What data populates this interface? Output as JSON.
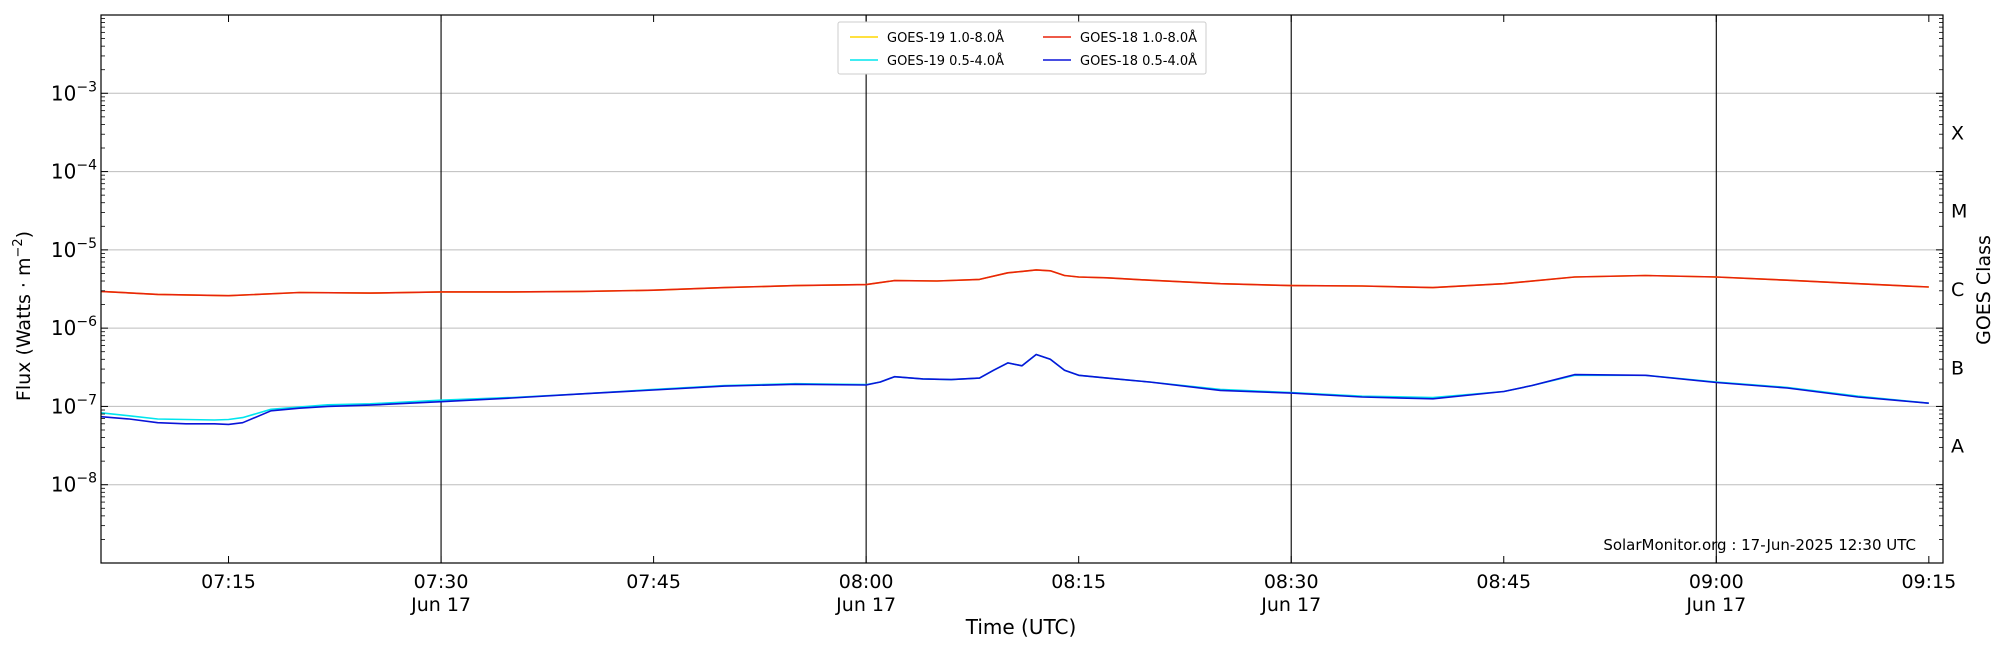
{
  "chart_data": {
    "type": "line",
    "xlabel": "Time (UTC)",
    "ylabel_main": "Flux (Watts · m",
    "ylabel_sup": "−2",
    "ylabel_close": ")",
    "right_label": "GOES Class",
    "watermark": "SolarMonitor.org : 17-Jun-2025 12:30 UTC",
    "scale": "log",
    "grid": "horizontal",
    "legend_position": "top-center",
    "xlim": [
      "07:06",
      "09:16"
    ],
    "ylim": [
      1e-09,
      0.01
    ],
    "x_ticks": [
      {
        "t": "07:15",
        "label": "07:15",
        "sub": ""
      },
      {
        "t": "07:30",
        "label": "07:30",
        "sub": "Jun 17"
      },
      {
        "t": "07:45",
        "label": "07:45",
        "sub": ""
      },
      {
        "t": "08:00",
        "label": "08:00",
        "sub": "Jun 17"
      },
      {
        "t": "08:15",
        "label": "08:15",
        "sub": ""
      },
      {
        "t": "08:30",
        "label": "08:30",
        "sub": "Jun 17"
      },
      {
        "t": "08:45",
        "label": "08:45",
        "sub": ""
      },
      {
        "t": "09:00",
        "label": "09:00",
        "sub": "Jun 17"
      },
      {
        "t": "09:15",
        "label": "09:15",
        "sub": ""
      }
    ],
    "day_lines": [
      "07:30",
      "08:00",
      "08:30",
      "09:00"
    ],
    "y_ticks": [
      {
        "exp": -8,
        "label": "10",
        "sup": "−8"
      },
      {
        "exp": -7,
        "label": "10",
        "sup": "−7"
      },
      {
        "exp": -6,
        "label": "10",
        "sup": "−6"
      },
      {
        "exp": -5,
        "label": "10",
        "sup": "−5"
      },
      {
        "exp": -4,
        "label": "10",
        "sup": "−4"
      },
      {
        "exp": -3,
        "label": "10",
        "sup": "−3"
      }
    ],
    "goes_classes": [
      {
        "label": "A",
        "exp": -7.5
      },
      {
        "label": "B",
        "exp": -6.5
      },
      {
        "label": "C",
        "exp": -5.5
      },
      {
        "label": "M",
        "exp": -4.5
      },
      {
        "label": "X",
        "exp": -3.5
      }
    ],
    "legend": [
      {
        "name": "GOES-19 1.0-8.0Å",
        "color": "#ffd700"
      },
      {
        "name": "GOES-19 0.5-4.0Å",
        "color": "#00e5ee"
      },
      {
        "name": "GOES-18 1.0-8.0Å",
        "color": "#e8230c"
      },
      {
        "name": "GOES-18 0.5-4.0Å",
        "color": "#0a14d8"
      }
    ],
    "series": [
      {
        "name": "GOES-19 1.0-8.0Å",
        "color": "#ffd700",
        "x": [
          "07:06",
          "07:10",
          "07:15",
          "07:20",
          "07:25",
          "07:30",
          "07:35",
          "07:40",
          "07:45",
          "07:50",
          "07:55",
          "08:00",
          "08:02",
          "08:05",
          "08:08",
          "08:10",
          "08:11",
          "08:12",
          "08:13",
          "08:14",
          "08:15",
          "08:17",
          "08:20",
          "08:25",
          "08:30",
          "08:35",
          "08:40",
          "08:45",
          "08:50",
          "08:55",
          "09:00",
          "09:05",
          "09:10",
          "09:15"
        ],
        "y": [
          2.95e-06,
          2.7e-06,
          2.6e-06,
          2.85e-06,
          2.8e-06,
          2.9e-06,
          2.9e-06,
          2.95e-06,
          3.05e-06,
          3.3e-06,
          3.5e-06,
          3.6e-06,
          4.05e-06,
          4e-06,
          4.2e-06,
          5.1e-06,
          5.3e-06,
          5.55e-06,
          5.4e-06,
          4.7e-06,
          4.5e-06,
          4.4e-06,
          4.1e-06,
          3.7e-06,
          3.5e-06,
          3.45e-06,
          3.3e-06,
          3.7e-06,
          4.5e-06,
          4.7e-06,
          4.5e-06,
          4.1e-06,
          3.7e-06,
          3.35e-06
        ]
      },
      {
        "name": "GOES-18 1.0-8.0Å",
        "color": "#e8230c",
        "x": [
          "07:06",
          "07:10",
          "07:15",
          "07:20",
          "07:25",
          "07:30",
          "07:35",
          "07:40",
          "07:45",
          "07:50",
          "07:55",
          "08:00",
          "08:02",
          "08:05",
          "08:08",
          "08:10",
          "08:11",
          "08:12",
          "08:13",
          "08:14",
          "08:15",
          "08:17",
          "08:20",
          "08:25",
          "08:30",
          "08:35",
          "08:40",
          "08:45",
          "08:50",
          "08:55",
          "09:00",
          "09:05",
          "09:10",
          "09:15"
        ],
        "y": [
          2.95e-06,
          2.7e-06,
          2.6e-06,
          2.85e-06,
          2.8e-06,
          2.9e-06,
          2.9e-06,
          2.95e-06,
          3.05e-06,
          3.3e-06,
          3.5e-06,
          3.6e-06,
          4.05e-06,
          4e-06,
          4.2e-06,
          5.1e-06,
          5.3e-06,
          5.55e-06,
          5.4e-06,
          4.7e-06,
          4.5e-06,
          4.4e-06,
          4.1e-06,
          3.7e-06,
          3.5e-06,
          3.45e-06,
          3.3e-06,
          3.7e-06,
          4.5e-06,
          4.7e-06,
          4.5e-06,
          4.1e-06,
          3.7e-06,
          3.35e-06
        ]
      },
      {
        "name": "GOES-19 0.5-4.0Å",
        "color": "#00e5ee",
        "x": [
          "07:06",
          "07:08",
          "07:10",
          "07:12",
          "07:14",
          "07:15",
          "07:16",
          "07:18",
          "07:20",
          "07:22",
          "07:25",
          "07:30",
          "07:35",
          "07:40",
          "07:45",
          "07:50",
          "07:55",
          "08:00",
          "08:01",
          "08:02",
          "08:04",
          "08:06",
          "08:08",
          "08:09",
          "08:10",
          "08:11",
          "08:12",
          "08:13",
          "08:14",
          "08:15",
          "08:17",
          "08:20",
          "08:25",
          "08:30",
          "08:35",
          "08:40",
          "08:45",
          "08:47",
          "08:50",
          "08:55",
          "09:00",
          "09:05",
          "09:10",
          "09:15"
        ],
        "y": [
          8.3e-08,
          7.6e-08,
          6.9e-08,
          6.8e-08,
          6.7e-08,
          6.8e-08,
          7.2e-08,
          9.2e-08,
          9.8e-08,
          1.05e-07,
          1.08e-07,
          1.2e-07,
          1.3e-07,
          1.45e-07,
          1.65e-07,
          1.85e-07,
          1.95e-07,
          1.9e-07,
          2.05e-07,
          2.4e-07,
          2.25e-07,
          2.2e-07,
          2.3e-07,
          2.9e-07,
          3.6e-07,
          3.3e-07,
          4.6e-07,
          4e-07,
          2.9e-07,
          2.5e-07,
          2.3e-07,
          2.05e-07,
          1.65e-07,
          1.5e-07,
          1.35e-07,
          1.3e-07,
          1.55e-07,
          1.85e-07,
          2.5e-07,
          2.5e-07,
          2.05e-07,
          1.75e-07,
          1.35e-07,
          1.1e-07
        ]
      },
      {
        "name": "GOES-18 0.5-4.0Å",
        "color": "#0a14d8",
        "x": [
          "07:06",
          "07:08",
          "07:10",
          "07:12",
          "07:14",
          "07:15",
          "07:16",
          "07:18",
          "07:20",
          "07:22",
          "07:25",
          "07:30",
          "07:35",
          "07:40",
          "07:45",
          "07:50",
          "07:55",
          "08:00",
          "08:01",
          "08:02",
          "08:04",
          "08:06",
          "08:08",
          "08:09",
          "08:10",
          "08:11",
          "08:12",
          "08:13",
          "08:14",
          "08:15",
          "08:17",
          "08:20",
          "08:25",
          "08:30",
          "08:35",
          "08:40",
          "08:45",
          "08:47",
          "08:50",
          "08:55",
          "09:00",
          "09:05",
          "09:10",
          "09:15"
        ],
        "y": [
          7.4e-08,
          6.9e-08,
          6.2e-08,
          6e-08,
          6e-08,
          5.9e-08,
          6.2e-08,
          8.8e-08,
          9.5e-08,
          1e-07,
          1.04e-07,
          1.15e-07,
          1.28e-07,
          1.45e-07,
          1.62e-07,
          1.82e-07,
          1.92e-07,
          1.88e-07,
          2.05e-07,
          2.4e-07,
          2.25e-07,
          2.2e-07,
          2.3e-07,
          2.9e-07,
          3.6e-07,
          3.3e-07,
          4.6e-07,
          4e-07,
          2.9e-07,
          2.5e-07,
          2.3e-07,
          2.05e-07,
          1.6e-07,
          1.48e-07,
          1.32e-07,
          1.25e-07,
          1.55e-07,
          1.85e-07,
          2.55e-07,
          2.5e-07,
          2.02e-07,
          1.72e-07,
          1.32e-07,
          1.1e-07
        ]
      }
    ]
  }
}
